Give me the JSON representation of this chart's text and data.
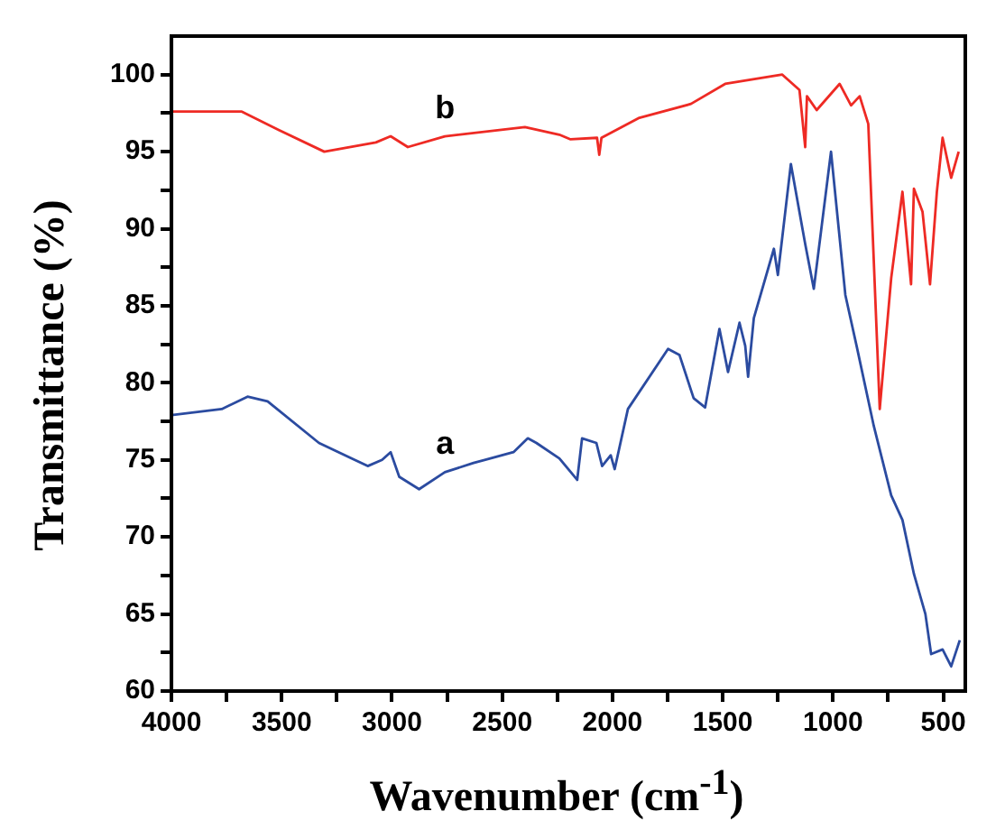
{
  "chart_data": {
    "type": "line",
    "xlabel": "Wavenumber  (cm$^{-1}$)",
    "ylabel": "Transmittance  (%)",
    "xlim": [
      4000,
      400
    ],
    "ylim": [
      60,
      102.5
    ],
    "xticks": [
      4000,
      {
        "value": 3750,
        "label": null
      },
      3500,
      {
        "value": 3250,
        "label": null
      },
      3000,
      {
        "value": 2750,
        "label": null
      },
      2500,
      {
        "value": 2250,
        "label": null
      },
      2000,
      {
        "value": 1750,
        "label": null
      },
      1500,
      {
        "value": 1250,
        "label": null
      },
      1000,
      {
        "value": 750,
        "label": null
      },
      500
    ],
    "yticks": [
      60,
      {
        "value": 62.5,
        "label": null
      },
      65,
      {
        "value": 67.5,
        "label": null
      },
      70,
      {
        "value": 72.5,
        "label": null
      },
      75,
      {
        "value": 77.5,
        "label": null
      },
      80,
      {
        "value": 82.5,
        "label": null
      },
      85,
      {
        "value": 87.5,
        "label": null
      },
      90,
      {
        "value": 92.5,
        "label": null
      },
      95,
      {
        "value": 97.5,
        "label": null
      },
      100
    ],
    "grid": false,
    "legend": false,
    "marker": "none",
    "line_style": "solid",
    "annotations": [
      "a",
      "b"
    ],
    "series": [
      {
        "color": "#2b4ba0",
        "x": [
          4000,
          3772,
          3655,
          3564,
          3331,
          3110,
          3045,
          3006,
          2967,
          2877,
          2760,
          2630,
          2449,
          2384,
          2345,
          2241,
          2177,
          2160,
          2138,
          2073,
          2047,
          2008,
          1990,
          1930,
          1748,
          1696,
          1632,
          1580,
          1515,
          1476,
          1424,
          1398,
          1385,
          1359,
          1268,
          1250,
          1191,
          1126,
          1087,
          1009,
          944,
          893,
          815,
          736,
          685,
          633,
          581,
          555,
          503,
          464,
          425
        ],
        "values": [
          77.9,
          78.3,
          79.1,
          78.8,
          76.1,
          74.6,
          75.0,
          75.5,
          73.9,
          73.1,
          74.2,
          74.8,
          75.5,
          76.4,
          76.1,
          75.1,
          74.0,
          73.7,
          76.4,
          76.1,
          74.6,
          75.3,
          74.4,
          78.3,
          82.2,
          81.8,
          79.0,
          78.4,
          83.5,
          80.7,
          83.9,
          82.4,
          80.4,
          84.2,
          88.7,
          87.0,
          94.2,
          89.0,
          86.1,
          95.0,
          85.7,
          82.4,
          77.2,
          72.7,
          71.1,
          67.6,
          65.0,
          62.4,
          62.7,
          61.6,
          63.3
        ]
      },
      {
        "color": "#ee2a24",
        "x": [
          4000,
          3681,
          3512,
          3307,
          3073,
          3006,
          2928,
          2760,
          2397,
          2241,
          2190,
          2070,
          2060,
          2050,
          1878,
          1644,
          1489,
          1230,
          1152,
          1126,
          1118,
          1074,
          970,
          918,
          879,
          840,
          788,
          736,
          685,
          646,
          633,
          594,
          560,
          529,
          503,
          464,
          430
        ],
        "values": [
          97.6,
          97.6,
          96.4,
          95.0,
          95.6,
          96.0,
          95.3,
          96.0,
          96.6,
          96.1,
          95.8,
          95.9,
          94.8,
          95.9,
          97.2,
          98.1,
          99.4,
          100.0,
          99.0,
          95.3,
          98.6,
          97.7,
          99.4,
          98.0,
          98.6,
          96.8,
          78.3,
          86.8,
          92.4,
          86.4,
          92.6,
          91.1,
          86.4,
          92.4,
          95.9,
          93.3,
          95.0
        ]
      }
    ]
  }
}
